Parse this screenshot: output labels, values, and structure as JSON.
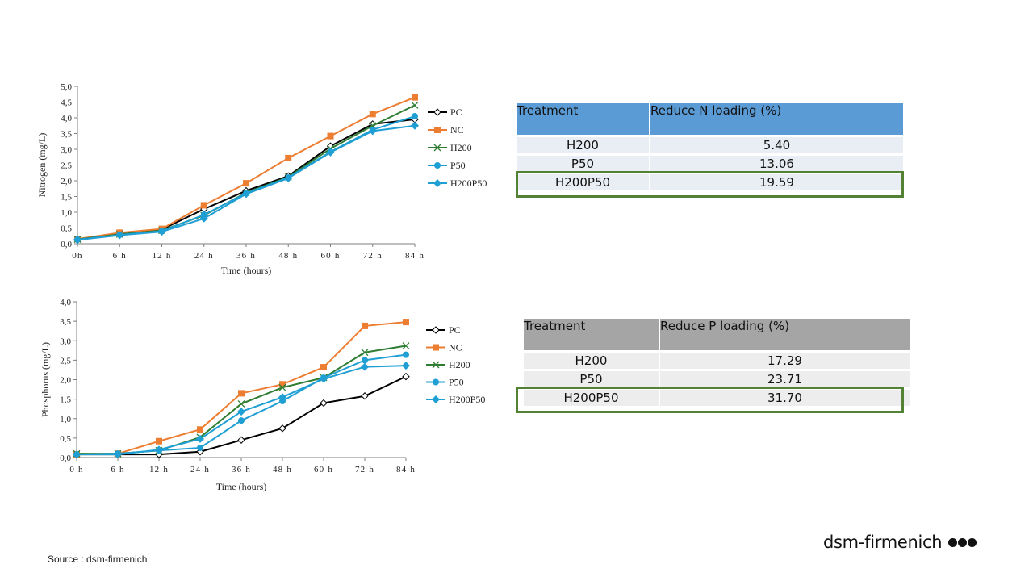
{
  "source_text": "Source : dsm-firmenich",
  "logo_text": "dsm-firmenich",
  "colors": {
    "PC": "#000000",
    "NC": "#ed7d31",
    "H200": "#2e7d32",
    "P50": "#1f9fd4",
    "H200P50": "#1f9fd4",
    "table_n_header": "#5b9bd5",
    "table_p_header": "#a5a5a5",
    "highlight": "#548235"
  },
  "table_n": {
    "headers": [
      "Treatment",
      "Reduce N loading (%)"
    ],
    "rows": [
      [
        "H200",
        "5.40"
      ],
      [
        "P50",
        "13.06"
      ],
      [
        "H200P50",
        "19.59"
      ]
    ]
  },
  "table_p": {
    "headers": [
      "Treatment",
      "Reduce P loading (%)"
    ],
    "rows": [
      [
        "H200",
        "17.29"
      ],
      [
        "P50",
        "23.71"
      ],
      [
        "H200P50",
        "31.70"
      ]
    ]
  },
  "chart_data": [
    {
      "type": "line",
      "xlabel": "Time (hours)",
      "ylabel": "Nitrogen (mg/L)",
      "categories": [
        "0h",
        "6 h",
        "12 h",
        "24 h",
        "36 h",
        "48 h",
        "60 h",
        "72 h",
        "84 h"
      ],
      "ylim": [
        0,
        5
      ],
      "yticks": [
        "0,0",
        "0,5",
        "1,0",
        "1,5",
        "2,0",
        "2,5",
        "3,0",
        "3,5",
        "4,0",
        "4,5",
        "5,0"
      ],
      "legend_position": "right",
      "series": [
        {
          "name": "PC",
          "marker": "diamond-open",
          "values": [
            0.13,
            0.32,
            0.45,
            1.1,
            1.68,
            2.15,
            3.1,
            3.8,
            3.95
          ]
        },
        {
          "name": "NC",
          "marker": "square",
          "values": [
            0.15,
            0.35,
            0.47,
            1.22,
            1.92,
            2.72,
            3.42,
            4.12,
            4.65
          ]
        },
        {
          "name": "H200",
          "marker": "x",
          "values": [
            0.14,
            0.3,
            0.42,
            0.9,
            1.62,
            2.12,
            3.02,
            3.75,
            4.4
          ]
        },
        {
          "name": "P50",
          "marker": "circle",
          "values": [
            0.13,
            0.28,
            0.4,
            0.92,
            1.6,
            2.1,
            2.92,
            3.62,
            4.05
          ]
        },
        {
          "name": "H200P50",
          "marker": "diamond",
          "values": [
            0.12,
            0.27,
            0.38,
            0.8,
            1.58,
            2.08,
            2.9,
            3.58,
            3.75
          ]
        }
      ]
    },
    {
      "type": "line",
      "xlabel": "Time (hours)",
      "ylabel": "Phosphorus (mg/L)",
      "categories": [
        "0 h",
        "6 h",
        "12 h",
        "24 h",
        "36 h",
        "48 h",
        "60 h",
        "72 h",
        "84 h"
      ],
      "ylim": [
        0,
        4
      ],
      "yticks": [
        "0,0",
        "0,5",
        "1,0",
        "1,5",
        "2,0",
        "2,5",
        "3,0",
        "3,5",
        "4,0"
      ],
      "legend_position": "right",
      "series": [
        {
          "name": "PC",
          "marker": "diamond-open",
          "values": [
            0.08,
            0.08,
            0.08,
            0.15,
            0.45,
            0.75,
            1.4,
            1.58,
            2.08
          ]
        },
        {
          "name": "NC",
          "marker": "square",
          "values": [
            0.08,
            0.1,
            0.42,
            0.72,
            1.65,
            1.88,
            2.32,
            3.38,
            3.48
          ]
        },
        {
          "name": "H200",
          "marker": "x",
          "values": [
            0.1,
            0.1,
            0.18,
            0.52,
            1.38,
            1.8,
            2.05,
            2.7,
            2.87
          ]
        },
        {
          "name": "P50",
          "marker": "circle",
          "values": [
            0.08,
            0.1,
            0.18,
            0.25,
            0.95,
            1.45,
            2.05,
            2.5,
            2.64
          ]
        },
        {
          "name": "H200P50",
          "marker": "diamond",
          "values": [
            0.08,
            0.08,
            0.2,
            0.48,
            1.18,
            1.55,
            2.02,
            2.33,
            2.36
          ]
        }
      ]
    }
  ]
}
